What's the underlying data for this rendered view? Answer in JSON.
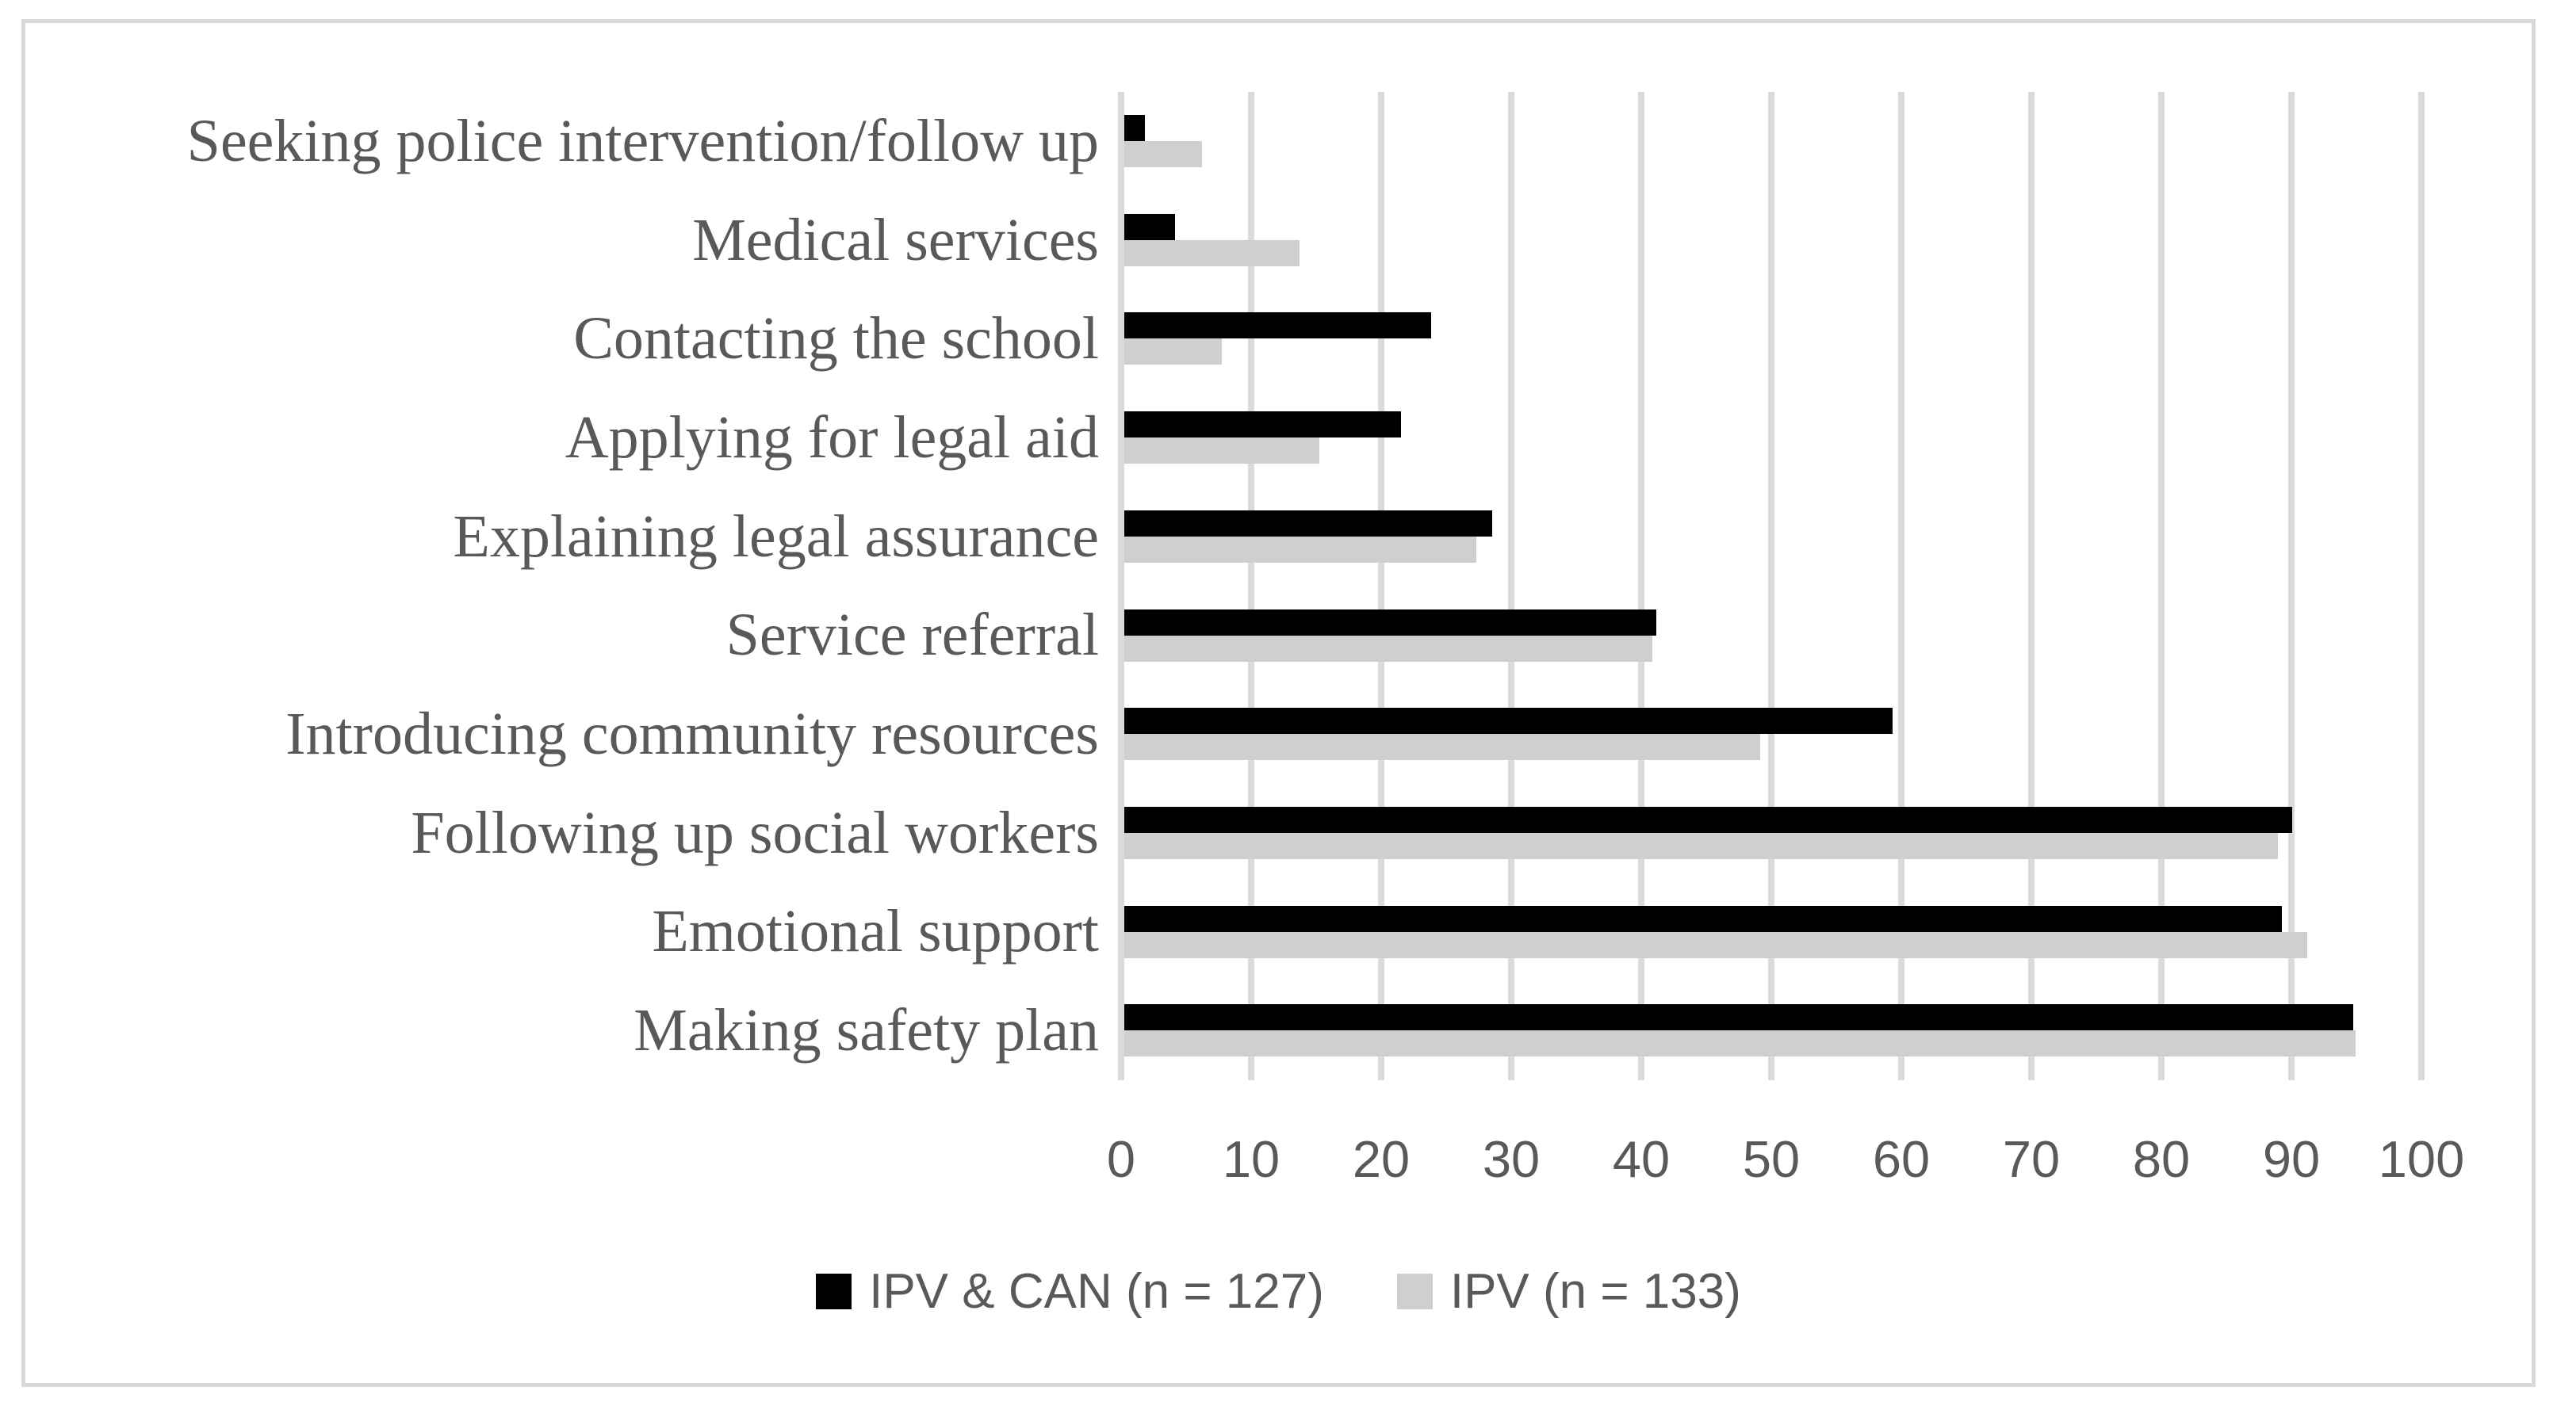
{
  "chart_data": {
    "type": "bar",
    "orientation": "horizontal",
    "title": "",
    "categories": [
      "Seeking police intervention/follow up",
      "Medical services",
      "Contacting the school",
      "Applying for legal aid",
      "Explaining legal assurance",
      "Service referral",
      "Introducing community resources",
      "Following up social workers",
      "Emotional support",
      "Making safety plan"
    ],
    "series": [
      {
        "name": "IPV & CAN (n = 127)",
        "color": "#000000",
        "values": [
          1.6,
          3.9,
          23.6,
          21.3,
          28.3,
          40.9,
          59.1,
          89.8,
          89.0,
          94.5
        ]
      },
      {
        "name": "IPV (n = 133)",
        "color": "#d0cece",
        "values": [
          6.0,
          13.5,
          7.5,
          15.0,
          27.1,
          40.6,
          48.9,
          88.7,
          91.0,
          94.7
        ]
      }
    ],
    "x_axis": {
      "min": 0,
      "max": 100,
      "tick_step": 10,
      "tick_labels": [
        "0",
        "10",
        "20",
        "30",
        "40",
        "50",
        "60",
        "70",
        "80",
        "90",
        "100"
      ]
    },
    "grid": "vertical-only",
    "legend_position": "bottom-center",
    "colors": {
      "gridline": "#dbdbdb",
      "chart_border": "#d9d9d9",
      "text": "#595959",
      "background": "#ffffff"
    }
  }
}
